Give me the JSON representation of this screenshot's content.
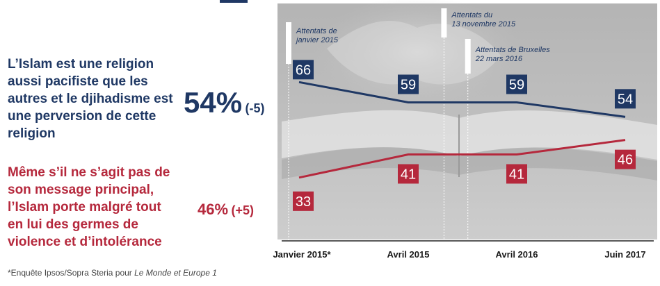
{
  "statements": {
    "pacifist": "L’Islam est une religion aussi pacifiste que les autres et le djihadisme est une perversion de cette religion",
    "violence": "Même s’il ne s’agit pas de son message principal, l’Islam porte malgré tout en lui des germes de violence et d’intolérance"
  },
  "percentages": {
    "pacifist_value": "54%",
    "pacifist_change": "(-5)",
    "violence_value": "46%",
    "violence_change": "(+5)"
  },
  "footnote": {
    "prefix": "*Enquête Ipsos/Sopra Steria pour ",
    "source": "Le Monde et Europe 1"
  },
  "colors": {
    "pacifist": "#1f3864",
    "violence": "#b5283c"
  },
  "chart_data": {
    "type": "line",
    "categories": [
      "Janvier 2015*",
      "Avril 2015",
      "Avril 2016",
      "Juin 2017"
    ],
    "series": [
      {
        "values": [
          66,
          59,
          59,
          54
        ]
      },
      {
        "values": [
          33,
          41,
          41,
          46
        ]
      }
    ],
    "ylim": [
      20,
      80
    ],
    "grid": false,
    "annotations": [
      {
        "lines": [
          "Attentats de",
          "janvier 2015"
        ],
        "x": 0
      },
      {
        "lines": [
          "Attentats du",
          "13 novembre 2015"
        ],
        "x": 1.4
      },
      {
        "lines": [
          "Attentats de Bruxelles",
          "22 mars 2016"
        ],
        "x": 1.62
      }
    ]
  }
}
